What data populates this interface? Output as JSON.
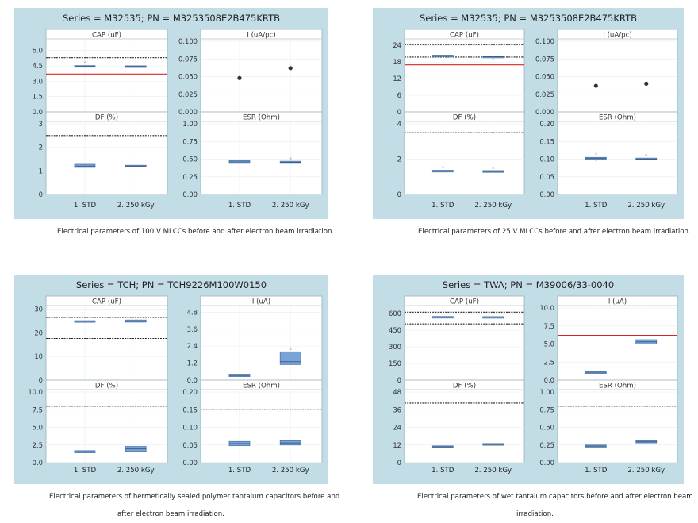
{
  "chart_data": [
    {
      "type": "boxplot",
      "title": "Series = M32535; PN = M3253508E2B475KRTB",
      "categories": [
        "1. STD",
        "2. 250 kGy"
      ],
      "caption": [
        "Electrical parameters of 100 V MLCCs before and after electron beam irradiation."
      ],
      "panels": [
        {
          "name": "CAP (uF)",
          "ylim": [
            0,
            6.9
          ],
          "ticks": [
            "0.0",
            "1.5",
            "3.0",
            "4.5",
            "6.0"
          ],
          "tickvals": [
            0,
            1.5,
            3,
            4.5,
            6
          ],
          "boxes": [
            {
              "q1": 4.42,
              "med": 4.47,
              "q3": 4.52,
              "out": [
                4.75
              ]
            },
            {
              "q1": 4.4,
              "med": 4.45,
              "q3": 4.5,
              "out": []
            }
          ],
          "points": [],
          "ref": [
            {
              "y": 5.3,
              "color": "#222222"
            },
            {
              "y": 3.7,
              "color": "#dd2222"
            }
          ]
        },
        {
          "name": "I (uA/pc)",
          "ylim": [
            0,
            0.1
          ],
          "ticks": [
            "0.000",
            "0.025",
            "0.050",
            "0.075",
            "0.100"
          ],
          "tickvals": [
            0,
            0.025,
            0.05,
            0.075,
            0.1
          ],
          "boxes": [],
          "points": [
            0.048,
            0.062
          ],
          "ref": []
        },
        {
          "name": "DF (%)",
          "ylim": [
            0,
            3
          ],
          "ticks": [
            "0",
            "1",
            "2",
            "3"
          ],
          "tickvals": [
            0,
            1,
            2,
            3
          ],
          "boxes": [
            {
              "q1": 1.15,
              "med": 1.2,
              "q3": 1.28,
              "out": []
            },
            {
              "q1": 1.17,
              "med": 1.2,
              "q3": 1.24,
              "out": []
            }
          ],
          "points": [],
          "ref": [
            {
              "y": 2.5,
              "color": "#222222"
            }
          ]
        },
        {
          "name": "ESR (Ohm)",
          "ylim": [
            0,
            1
          ],
          "ticks": [
            "0.00",
            "0.25",
            "0.50",
            "0.75",
            "1.00"
          ],
          "tickvals": [
            0,
            0.25,
            0.5,
            0.75,
            1
          ],
          "boxes": [
            {
              "q1": 0.44,
              "med": 0.46,
              "q3": 0.48,
              "out": []
            },
            {
              "q1": 0.44,
              "med": 0.455,
              "q3": 0.47,
              "out": [
                0.5
              ]
            }
          ],
          "points": [],
          "ref": []
        }
      ]
    },
    {
      "type": "boxplot",
      "title": "Series = M32535; PN = M3253508E2B475KRTB",
      "categories": [
        "1. STD",
        "2. 250 kGy"
      ],
      "caption": [
        "Electrical parameters of 25 V MLCCs before and after electron beam irradiation."
      ],
      "panels": [
        {
          "name": "CAP (uF)",
          "ylim": [
            0,
            25.5
          ],
          "ticks": [
            "0",
            "6",
            "12",
            "18",
            "24"
          ],
          "tickvals": [
            0,
            6,
            12,
            18,
            24
          ],
          "boxes": [
            {
              "q1": 20.0,
              "med": 20.2,
              "q3": 20.5,
              "out": []
            },
            {
              "q1": 19.7,
              "med": 19.9,
              "q3": 20.1,
              "out": [
                19.0
              ]
            }
          ],
          "points": [],
          "ref": [
            {
              "y": 24.3,
              "color": "#222222"
            },
            {
              "y": 19.8,
              "color": "#222222"
            },
            {
              "y": 17.0,
              "color": "#dd2222"
            }
          ]
        },
        {
          "name": "I (uA/pc)",
          "ylim": [
            0,
            0.1
          ],
          "ticks": [
            "0.000",
            "0.025",
            "0.050",
            "0.075",
            "0.100"
          ],
          "tickvals": [
            0,
            0.025,
            0.05,
            0.075,
            0.1
          ],
          "boxes": [],
          "points": [
            0.037,
            0.04
          ],
          "ref": []
        },
        {
          "name": "DF (%)",
          "ylim": [
            0,
            4
          ],
          "ticks": [
            "0",
            "2",
            "4"
          ],
          "tickvals": [
            0,
            2,
            4
          ],
          "boxes": [
            {
              "q1": 1.27,
              "med": 1.32,
              "q3": 1.37,
              "out": [
                1.5
              ]
            },
            {
              "q1": 1.25,
              "med": 1.3,
              "q3": 1.35,
              "out": [
                1.45
              ]
            }
          ],
          "points": [],
          "ref": [
            {
              "y": 3.5,
              "color": "#222222"
            }
          ]
        },
        {
          "name": "ESR (Ohm)",
          "ylim": [
            0,
            0.2
          ],
          "ticks": [
            "0.00",
            "0.05",
            "0.10",
            "0.15",
            "0.20"
          ],
          "tickvals": [
            0,
            0.05,
            0.1,
            0.15,
            0.2
          ],
          "boxes": [
            {
              "q1": 0.099,
              "med": 0.102,
              "q3": 0.105,
              "out": [
                0.113,
                0.095
              ]
            },
            {
              "q1": 0.098,
              "med": 0.1,
              "q3": 0.103,
              "out": [
                0.11
              ]
            }
          ],
          "points": [],
          "ref": []
        }
      ]
    },
    {
      "type": "boxplot",
      "title": "Series = TCH; PN = TCH9226M100W0150",
      "categories": [
        "1. STD",
        "2. 250 kGy"
      ],
      "caption": [
        "Electrical parameters of hermetically sealed polymer tantalum capacitors before and",
        "after electron beam irradiation."
      ],
      "panels": [
        {
          "name": "CAP (uF)",
          "ylim": [
            0,
            30.5
          ],
          "ticks": [
            "0",
            "10",
            "20",
            "30"
          ],
          "tickvals": [
            0,
            10,
            20,
            30
          ],
          "boxes": [
            {
              "q1": 24.7,
              "med": 24.9,
              "q3": 25.1,
              "out": []
            },
            {
              "q1": 24.5,
              "med": 24.9,
              "q3": 25.4,
              "out": []
            }
          ],
          "points": [],
          "ref": [
            {
              "y": 26.5,
              "color": "#222222"
            },
            {
              "y": 17.6,
              "color": "#222222"
            }
          ]
        },
        {
          "name": "I (uA)",
          "ylim": [
            0,
            5.1
          ],
          "ticks": [
            "0.0",
            "1.2",
            "2.4",
            "3.6",
            "4.8"
          ],
          "tickvals": [
            0,
            1.2,
            2.4,
            3.6,
            4.8
          ],
          "boxes": [
            {
              "q1": 0.25,
              "med": 0.33,
              "q3": 0.42,
              "out": []
            },
            {
              "q1": 1.1,
              "med": 1.3,
              "q3": 2.0,
              "out": [
                2.15
              ]
            }
          ],
          "points": [],
          "ref": []
        },
        {
          "name": "DF (%)",
          "ylim": [
            0,
            10
          ],
          "ticks": [
            "0.0",
            "2.5",
            "5.0",
            "7.5",
            "10.0"
          ],
          "tickvals": [
            0,
            2.5,
            5,
            7.5,
            10
          ],
          "boxes": [
            {
              "q1": 1.4,
              "med": 1.55,
              "q3": 1.7,
              "out": []
            },
            {
              "q1": 1.6,
              "med": 1.95,
              "q3": 2.3,
              "out": []
            }
          ],
          "points": [],
          "ref": [
            {
              "y": 8.0,
              "color": "#222222"
            }
          ]
        },
        {
          "name": "ESR (Ohm)",
          "ylim": [
            0,
            0.2
          ],
          "ticks": [
            "0.00",
            "0.05",
            "0.10",
            "0.15",
            "0.20"
          ],
          "tickvals": [
            0,
            0.05,
            0.1,
            0.15,
            0.2
          ],
          "boxes": [
            {
              "q1": 0.048,
              "med": 0.054,
              "q3": 0.06,
              "out": []
            },
            {
              "q1": 0.05,
              "med": 0.056,
              "q3": 0.062,
              "out": []
            }
          ],
          "points": [],
          "ref": [
            {
              "y": 0.15,
              "color": "#222222"
            }
          ]
        }
      ]
    },
    {
      "type": "boxplot",
      "title": "Series = TWA; PN = M39006/33-0040",
      "categories": [
        "1. STD",
        "2. 250 kGy"
      ],
      "caption": [
        "Electrical parameters of wet tantalum capacitors before and after electron beam",
        "irradiation."
      ],
      "panels": [
        {
          "name": "CAP (uF)",
          "ylim": [
            0,
            650
          ],
          "ticks": [
            "0",
            "150",
            "300",
            "450",
            "600"
          ],
          "tickvals": [
            0,
            150,
            300,
            450,
            600
          ],
          "boxes": [
            {
              "q1": 567,
              "med": 570,
              "q3": 573,
              "out": []
            },
            {
              "q1": 565,
              "med": 568,
              "q3": 572,
              "out": []
            }
          ],
          "points": [],
          "ref": [
            {
              "y": 612,
              "color": "#222222"
            },
            {
              "y": 506,
              "color": "#222222"
            }
          ]
        },
        {
          "name": "I (uA)",
          "ylim": [
            0,
            10
          ],
          "ticks": [
            "0.0",
            "2.5",
            "5.0",
            "7.5",
            "10.0"
          ],
          "tickvals": [
            0,
            2.5,
            5,
            7.5,
            10
          ],
          "boxes": [
            {
              "q1": 1.05,
              "med": 1.1,
              "q3": 1.15,
              "out": []
            },
            {
              "q1": 5.0,
              "med": 5.3,
              "q3": 5.6,
              "out": []
            }
          ],
          "points": [],
          "ref": [
            {
              "y": 6.2,
              "color": "#dd2222"
            },
            {
              "y": 5.0,
              "color": "#222222"
            }
          ]
        },
        {
          "name": "DF (%)",
          "ylim": [
            0,
            48
          ],
          "ticks": [
            "0",
            "12",
            "24",
            "36",
            "48"
          ],
          "tickvals": [
            0,
            12,
            24,
            36,
            48
          ],
          "boxes": [
            {
              "q1": 10.2,
              "med": 10.8,
              "q3": 11.4,
              "out": []
            },
            {
              "q1": 11.8,
              "med": 12.4,
              "q3": 13.0,
              "out": []
            }
          ],
          "points": [],
          "ref": [
            {
              "y": 40.5,
              "color": "#222222"
            }
          ]
        },
        {
          "name": "ESR (Ohm)",
          "ylim": [
            0,
            1
          ],
          "ticks": [
            "0.00",
            "0.25",
            "0.50",
            "0.75",
            "1.00"
          ],
          "tickvals": [
            0,
            0.25,
            0.5,
            0.75,
            1
          ],
          "boxes": [
            {
              "q1": 0.22,
              "med": 0.235,
              "q3": 0.25,
              "out": []
            },
            {
              "q1": 0.28,
              "med": 0.295,
              "q3": 0.31,
              "out": []
            }
          ],
          "points": [],
          "ref": [
            {
              "y": 0.8,
              "color": "#222222"
            }
          ]
        }
      ]
    }
  ]
}
